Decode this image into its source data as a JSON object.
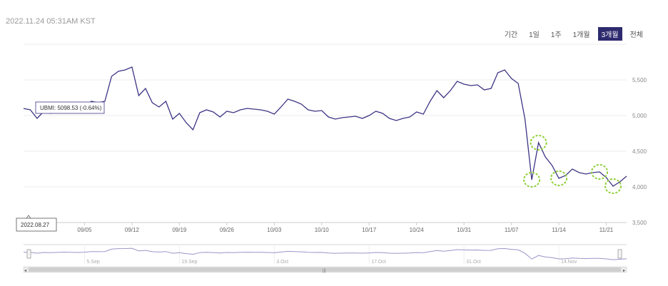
{
  "header": {
    "timestamp": "2022.11.24 05:31AM KST"
  },
  "range_buttons": [
    {
      "label": "기간",
      "active": false
    },
    {
      "label": "1일",
      "active": false
    },
    {
      "label": "1주",
      "active": false
    },
    {
      "label": "1개월",
      "active": false
    },
    {
      "label": "3개월",
      "active": true
    },
    {
      "label": "전체",
      "active": false
    }
  ],
  "tooltip": {
    "text": "UBMI: 5098.53 (-0.64%)"
  },
  "x_tooltip": {
    "text": "2022.08.27"
  },
  "navigator": {
    "labels": [
      "5.Sep",
      "19.Sep",
      "3.Oct",
      "17.Oct",
      "31.Oct",
      "14.Nov"
    ]
  },
  "colors": {
    "line": "#3d3585",
    "highlight": "#8fcf3a",
    "active_button": "#2e2a6e"
  },
  "chart_data": {
    "type": "line",
    "series": [
      {
        "name": "UBMI",
        "values": [
          [
            "2022-08-27",
            5098.53
          ],
          [
            "2022-08-28",
            5080
          ],
          [
            "2022-08-29",
            4960
          ],
          [
            "2022-08-30",
            5060
          ],
          [
            "2022-08-31",
            5030
          ],
          [
            "2022-09-01",
            5070
          ],
          [
            "2022-09-02",
            5110
          ],
          [
            "2022-09-03",
            5080
          ],
          [
            "2022-09-04",
            5060
          ],
          [
            "2022-09-05",
            5100
          ],
          [
            "2022-09-06",
            5200
          ],
          [
            "2022-09-07",
            5180
          ],
          [
            "2022-09-08",
            5200
          ],
          [
            "2022-09-09",
            5550
          ],
          [
            "2022-09-10",
            5620
          ],
          [
            "2022-09-11",
            5640
          ],
          [
            "2022-09-12",
            5680
          ],
          [
            "2022-09-13",
            5280
          ],
          [
            "2022-09-14",
            5380
          ],
          [
            "2022-09-15",
            5180
          ],
          [
            "2022-09-16",
            5120
          ],
          [
            "2022-09-17",
            5200
          ],
          [
            "2022-09-18",
            4950
          ],
          [
            "2022-09-19",
            5030
          ],
          [
            "2022-09-20",
            4900
          ],
          [
            "2022-09-21",
            4800
          ],
          [
            "2022-09-22",
            5040
          ],
          [
            "2022-09-23",
            5080
          ],
          [
            "2022-09-24",
            5050
          ],
          [
            "2022-09-25",
            4980
          ],
          [
            "2022-09-26",
            5060
          ],
          [
            "2022-09-27",
            5040
          ],
          [
            "2022-09-28",
            5080
          ],
          [
            "2022-09-29",
            5100
          ],
          [
            "2022-09-30",
            5090
          ],
          [
            "2022-10-01",
            5080
          ],
          [
            "2022-10-02",
            5060
          ],
          [
            "2022-10-03",
            5020
          ],
          [
            "2022-10-04",
            5120
          ],
          [
            "2022-10-05",
            5230
          ],
          [
            "2022-10-06",
            5200
          ],
          [
            "2022-10-07",
            5160
          ],
          [
            "2022-10-08",
            5080
          ],
          [
            "2022-10-09",
            5060
          ],
          [
            "2022-10-10",
            5070
          ],
          [
            "2022-10-11",
            4980
          ],
          [
            "2022-10-12",
            4950
          ],
          [
            "2022-10-13",
            4970
          ],
          [
            "2022-10-14",
            4980
          ],
          [
            "2022-10-15",
            4990
          ],
          [
            "2022-10-16",
            4960
          ],
          [
            "2022-10-17",
            5000
          ],
          [
            "2022-10-18",
            5060
          ],
          [
            "2022-10-19",
            5030
          ],
          [
            "2022-10-20",
            4960
          ],
          [
            "2022-10-21",
            4930
          ],
          [
            "2022-10-22",
            4960
          ],
          [
            "2022-10-23",
            4980
          ],
          [
            "2022-10-24",
            5050
          ],
          [
            "2022-10-25",
            5020
          ],
          [
            "2022-10-26",
            5200
          ],
          [
            "2022-10-27",
            5350
          ],
          [
            "2022-10-28",
            5250
          ],
          [
            "2022-10-29",
            5350
          ],
          [
            "2022-10-30",
            5480
          ],
          [
            "2022-10-31",
            5440
          ],
          [
            "2022-11-01",
            5420
          ],
          [
            "2022-11-02",
            5430
          ],
          [
            "2022-11-03",
            5360
          ],
          [
            "2022-11-04",
            5380
          ],
          [
            "2022-11-05",
            5600
          ],
          [
            "2022-11-06",
            5640
          ],
          [
            "2022-11-07",
            5520
          ],
          [
            "2022-11-08",
            5450
          ],
          [
            "2022-11-09",
            4950
          ],
          [
            "2022-11-10",
            4100
          ],
          [
            "2022-11-11",
            4620
          ],
          [
            "2022-11-12",
            4420
          ],
          [
            "2022-11-13",
            4300
          ],
          [
            "2022-11-14",
            4120
          ],
          [
            "2022-11-15",
            4160
          ],
          [
            "2022-11-16",
            4250
          ],
          [
            "2022-11-17",
            4200
          ],
          [
            "2022-11-18",
            4180
          ],
          [
            "2022-11-19",
            4200
          ],
          [
            "2022-11-20",
            4210
          ],
          [
            "2022-11-21",
            4130
          ],
          [
            "2022-11-22",
            4010
          ],
          [
            "2022-11-23",
            4070
          ],
          [
            "2022-11-24",
            4150
          ]
        ]
      }
    ],
    "y_ticks": [
      "5,500",
      "5,000",
      "4,500",
      "4,000",
      "3,500"
    ],
    "y_values": [
      5500,
      5000,
      4500,
      4000,
      3500
    ],
    "x_ticks": [
      "09/05",
      "09/12",
      "09/19",
      "09/26",
      "10/03",
      "10/10",
      "10/17",
      "10/24",
      "10/31",
      "11/07",
      "11/14",
      "11/21"
    ],
    "x_tick_dates": [
      "2022-09-05",
      "2022-09-12",
      "2022-09-19",
      "2022-09-26",
      "2022-10-03",
      "2022-10-10",
      "2022-10-17",
      "2022-10-24",
      "2022-10-31",
      "2022-11-07",
      "2022-11-14",
      "2022-11-21"
    ],
    "ylim": [
      3500,
      6000
    ],
    "xlim": [
      "2022-08-27",
      "2022-11-24"
    ],
    "highlights": [
      [
        "2022-11-10",
        4100
      ],
      [
        "2022-11-11",
        4620
      ],
      [
        "2022-11-14",
        4120
      ],
      [
        "2022-11-20",
        4210
      ],
      [
        "2022-11-22",
        4010
      ]
    ],
    "grid": true
  }
}
